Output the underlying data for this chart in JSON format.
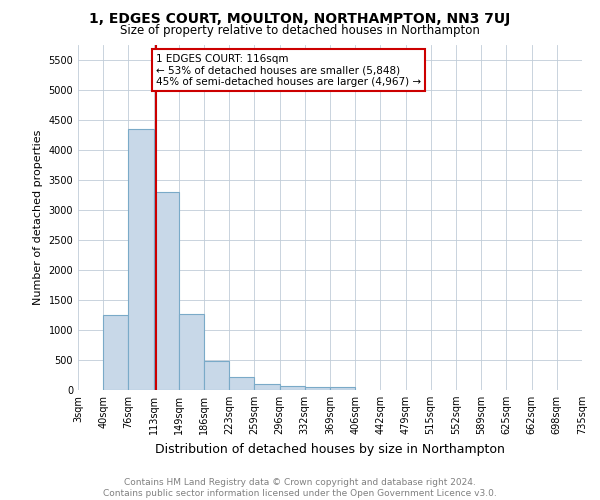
{
  "title": "1, EDGES COURT, MOULTON, NORTHAMPTON, NN3 7UJ",
  "subtitle": "Size of property relative to detached houses in Northampton",
  "xlabel": "Distribution of detached houses by size in Northampton",
  "ylabel": "Number of detached properties",
  "bin_edges": [
    3,
    40,
    76,
    113,
    149,
    186,
    223,
    259,
    296,
    332,
    369,
    406,
    442,
    479,
    515,
    552,
    589,
    625,
    662,
    698,
    735
  ],
  "bar_heights": [
    0,
    1250,
    4350,
    3300,
    1260,
    490,
    220,
    95,
    70,
    55,
    55,
    0,
    0,
    0,
    0,
    0,
    0,
    0,
    0,
    0
  ],
  "bar_color": "#c8d8e8",
  "bar_edgecolor": "#7aaac8",
  "vline_x": 116,
  "vline_color": "#cc0000",
  "ylim": [
    0,
    5750
  ],
  "yticks": [
    0,
    500,
    1000,
    1500,
    2000,
    2500,
    3000,
    3500,
    4000,
    4500,
    5000,
    5500
  ],
  "annotation_title": "1 EDGES COURT: 116sqm",
  "annotation_line2": "← 53% of detached houses are smaller (5,848)",
  "annotation_line3": "45% of semi-detached houses are larger (4,967) →",
  "annotation_box_color": "#cc0000",
  "footer_line1": "Contains HM Land Registry data © Crown copyright and database right 2024.",
  "footer_line2": "Contains public sector information licensed under the Open Government Licence v3.0.",
  "bg_color": "#ffffff",
  "grid_color": "#c0ccd8",
  "title_fontsize": 10,
  "subtitle_fontsize": 8.5,
  "xlabel_fontsize": 9,
  "ylabel_fontsize": 8,
  "tick_fontsize": 7,
  "annotation_fontsize": 7.5,
  "footer_fontsize": 6.5
}
